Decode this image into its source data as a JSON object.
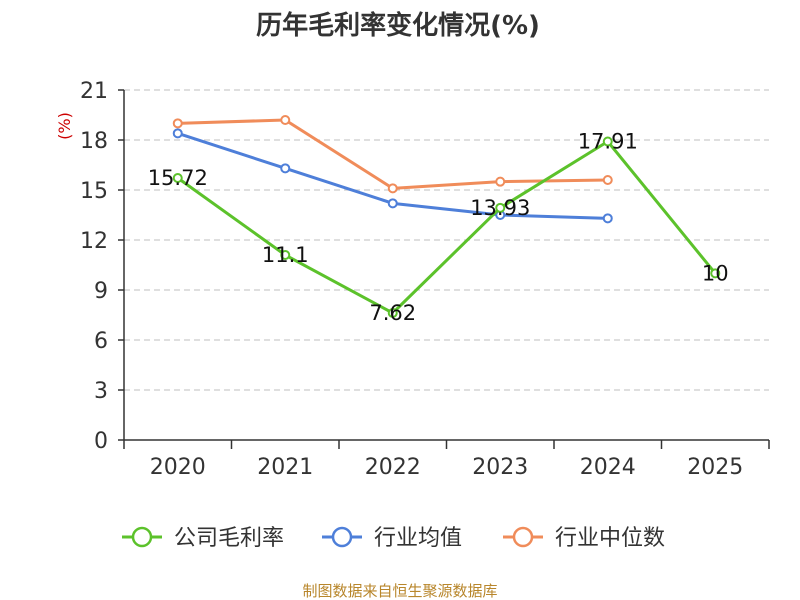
{
  "chart_data": {
    "type": "line",
    "title": "历年毛利率变化情况(%)",
    "ylabel": "(%)",
    "xlabel": "",
    "categories": [
      "2020",
      "2021",
      "2022",
      "2023",
      "2024",
      "2025"
    ],
    "ylim": [
      0,
      21
    ],
    "yticks": [
      0,
      3,
      6,
      9,
      12,
      15,
      18,
      21
    ],
    "grid": "horizontal-dashed",
    "legend_position": "bottom",
    "series": [
      {
        "name": "公司毛利率",
        "color": "#5cc22b",
        "values": [
          15.72,
          11.1,
          7.62,
          13.93,
          17.91,
          10
        ],
        "labels": [
          "15.72",
          "11.1",
          "7.62",
          "13.93",
          "17.91",
          "10"
        ]
      },
      {
        "name": "行业均值",
        "color": "#4e7fd9",
        "values": [
          18.4,
          16.3,
          14.2,
          13.5,
          13.3,
          null
        ]
      },
      {
        "name": "行业中位数",
        "color": "#f08c5a",
        "values": [
          19.0,
          19.2,
          15.1,
          15.5,
          15.6,
          null
        ]
      }
    ]
  },
  "footer": {
    "source": "制图数据来自恒生聚源数据库"
  }
}
